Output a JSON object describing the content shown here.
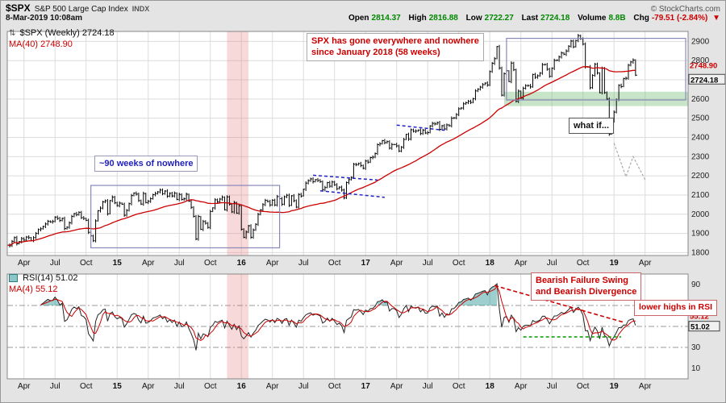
{
  "header": {
    "symbol": "$SPX",
    "name": "S&P 500 Large Cap Index",
    "exchange": "INDX",
    "copyright": "© StockCharts.com",
    "datetime": "8-Mar-2019 10:08am",
    "quote": {
      "open_label": "Open",
      "open": "2814.37",
      "high_label": "High",
      "high": "2816.88",
      "low_label": "Low",
      "low": "2722.27",
      "last_label": "Last",
      "last": "2724.18",
      "volume_label": "Volume",
      "volume": "8.8B",
      "chg_label": "Chg",
      "chg": "-79.51 (-2.84%)",
      "chg_dir": "▼"
    }
  },
  "icons": {
    "series_type": "⇅"
  },
  "legend_main": {
    "series": "$SPX (Weekly) 2724.18",
    "ma": "MA(40) 2748.90"
  },
  "legend_rsi": {
    "series": "RSI(14) 51.02",
    "ma": "MA(4) 55.12"
  },
  "labels": {
    "main_last": "2724.18",
    "main_ma": "2748.90",
    "rsi_last": "51.02",
    "rsi_ma": "55.12"
  },
  "annotations": {
    "spx_note_line1": "SPX has gone everywhere and nowhere",
    "spx_note_line2": "since January 2018 (58 weeks)",
    "ninety_weeks": "~90 weeks of nowhere",
    "what_if": "what if...",
    "bearish_line1": "Bearish Failure Swing",
    "bearish_line2": "and Bearish Divergence",
    "lower_highs": "lower highs in RSI"
  },
  "colors": {
    "up_bar": "#000000",
    "ma_line": "#cc0000",
    "rsi_line": "#222222",
    "rsi_ma": "#cc0000",
    "rsi_fill": "rgba(0,128,128,0.38)",
    "grid": "#dcdcdc",
    "guide": "#999999",
    "band_pink": "rgba(230,120,120,0.28)",
    "band_green": "rgba(120,190,120,0.40)",
    "box_blue": "#8888bb",
    "trend_blue": "#2222cc",
    "trend_red": "#cc0000",
    "trend_green": "#009900",
    "whatif_gray": "#aaaaaa",
    "value_green": "#008800",
    "value_red": "#cc0000"
  },
  "chart_data": {
    "type": "ohlc-bar+line",
    "title": "$SPX S&P 500 Large Cap Index — Weekly with MA(40), RSI(14) with MA(4)",
    "interval": "weekly",
    "x_start": "Feb-2014",
    "x_end": "Mar-2019",
    "last_close": 2724.18,
    "ma40_last": 2748.9,
    "y_axis": {
      "min": 1785,
      "max": 2952,
      "ticks": [
        2900,
        2800,
        2700,
        2600,
        2500,
        2400,
        2300,
        2200,
        2100,
        2000,
        1900,
        1800
      ]
    },
    "x_ticks": [
      {
        "label": "Apr",
        "week": 7
      },
      {
        "label": "Jul",
        "week": 20
      },
      {
        "label": "Oct",
        "week": 33
      },
      {
        "label": "15",
        "week": 46,
        "bold": true
      },
      {
        "label": "Apr",
        "week": 59
      },
      {
        "label": "Jul",
        "week": 72
      },
      {
        "label": "Oct",
        "week": 85
      },
      {
        "label": "16",
        "week": 98,
        "bold": true
      },
      {
        "label": "Apr",
        "week": 111
      },
      {
        "label": "Jul",
        "week": 124
      },
      {
        "label": "Oct",
        "week": 137
      },
      {
        "label": "17",
        "week": 150,
        "bold": true
      },
      {
        "label": "Apr",
        "week": 163
      },
      {
        "label": "Jul",
        "week": 176
      },
      {
        "label": "Oct",
        "week": 189
      },
      {
        "label": "18",
        "week": 202,
        "bold": true
      },
      {
        "label": "Apr",
        "week": 215
      },
      {
        "label": "Jul",
        "week": 228
      },
      {
        "label": "Oct",
        "week": 241
      },
      {
        "label": "19",
        "week": 254,
        "bold": true
      },
      {
        "label": "Apr",
        "week": 267
      }
    ],
    "closes": [
      1839,
      1836,
      1859,
      1878,
      1846,
      1857,
      1873,
      1865,
      1881,
      1878,
      1863,
      1878,
      1900,
      1920,
      1924,
      1936,
      1949,
      1963,
      1960,
      1962,
      1985,
      1978,
      1967,
      1978,
      1925,
      1932,
      1955,
      1988,
      2003,
      1998,
      2010,
      1982,
      1978,
      1968,
      1906,
      1887,
      1862,
      1965,
      2018,
      2032,
      2064,
      2070,
      2002,
      2071,
      2089,
      2059,
      2045,
      2058,
      2052,
      1995,
      2020,
      2055,
      2097,
      2110,
      2105,
      2071,
      2053,
      2108,
      2061,
      2067,
      2081,
      2102,
      2108,
      2116,
      2126,
      2107,
      2121,
      2094,
      2109,
      2095,
      2110,
      2077,
      2103,
      2077,
      2080,
      2104,
      2068,
      2036,
      1989,
      1871,
      1988,
      1921,
      1962,
      1953,
      1931,
      2014,
      2033,
      2075,
      2065,
      2079,
      2089,
      2023,
      2090,
      2052,
      2012,
      2061,
      2006,
      2044,
      1922,
      1880,
      1907,
      1940,
      1880,
      1918,
      1948,
      1999,
      2022,
      2050,
      2072,
      2066,
      2048,
      2073,
      2048,
      2092,
      2081,
      2052,
      2091,
      2099,
      2046,
      2096,
      2071,
      2037,
      2103,
      2095,
      2130,
      2162,
      2175,
      2184,
      2169,
      2180,
      2176,
      2170,
      2128,
      2139,
      2165,
      2146,
      2168,
      2153,
      2133,
      2141,
      2126,
      2085,
      2165,
      2180,
      2192,
      2260,
      2258,
      2264,
      2254,
      2239,
      2277,
      2271,
      2295,
      2297,
      2316,
      2362,
      2367,
      2383,
      2373,
      2378,
      2344,
      2363,
      2363,
      2356,
      2329,
      2349,
      2389,
      2416,
      2391,
      2440,
      2432,
      2433,
      2438,
      2420,
      2438,
      2423,
      2425,
      2460,
      2473,
      2470,
      2477,
      2442,
      2461,
      2444,
      2465,
      2461,
      2500,
      2502,
      2519,
      2549,
      2553,
      2575,
      2581,
      2588,
      2582,
      2602,
      2642,
      2651,
      2662,
      2675,
      2683,
      2673,
      2743,
      2786,
      2810,
      2873,
      2762,
      2620,
      2732,
      2747,
      2691,
      2787,
      2752,
      2588,
      2641,
      2604,
      2656,
      2670,
      2670,
      2663,
      2728,
      2713,
      2721,
      2735,
      2779,
      2780,
      2755,
      2718,
      2760,
      2801,
      2802,
      2819,
      2840,
      2833,
      2850,
      2875,
      2902,
      2872,
      2905,
      2930,
      2914,
      2886,
      2767,
      2768,
      2659,
      2723,
      2781,
      2736,
      2633,
      2760,
      2633,
      2600,
      2417,
      2486,
      2532,
      2596,
      2671,
      2665,
      2707,
      2708,
      2776,
      2793,
      2803,
      2724
    ],
    "ma_period": 40,
    "rsi": {
      "period": 14,
      "ma_period": 4,
      "last": 51.02,
      "ma_last": 55.12,
      "ticks": [
        90,
        70,
        30,
        10
      ],
      "guides": [
        70,
        50,
        30
      ]
    },
    "overlays": {
      "regions": [
        {
          "name": "jan-2016-crash-band",
          "type": "vband",
          "w1": 92,
          "w2": 101,
          "color": "rgba(230,120,120,0.28)",
          "panels": [
            "main",
            "rsi"
          ]
        },
        {
          "name": "consolidation-box-2015",
          "type": "pricebox",
          "w1": 35,
          "w2": 114,
          "p1": 1825,
          "p2": 2150,
          "stroke": "#8888bb"
        },
        {
          "name": "consolidation-box-2018",
          "type": "pricebox",
          "w1": 209,
          "w2": 284,
          "p1": 2595,
          "p2": 2916,
          "stroke": "#8888bb"
        },
        {
          "name": "support-zone-band",
          "type": "hband",
          "w1": 208,
          "w2": 285,
          "p1": 2563,
          "p2": 2638,
          "color": "rgba(120,190,120,0.40)"
        }
      ],
      "trendlines_main": [
        {
          "w1": 128,
          "p1": 2203,
          "w2": 155,
          "p2": 2178,
          "color": "#2222cc",
          "dash": "4,3"
        },
        {
          "w1": 131,
          "p1": 2122,
          "w2": 158,
          "p2": 2088,
          "color": "#2222cc",
          "dash": "4,3"
        },
        {
          "w1": 163,
          "p1": 2464,
          "w2": 184,
          "p2": 2436,
          "color": "#2222cc",
          "dash": "4,3"
        }
      ],
      "whatif_path": [
        [
          254,
          2370
        ],
        [
          259,
          2195
        ],
        [
          262,
          2300
        ],
        [
          267,
          2180
        ]
      ],
      "trendlines_rsi": [
        {
          "w1": 204,
          "v1": 89,
          "w2": 258,
          "v2": 54,
          "color": "#cc0000",
          "dash": "5,3"
        },
        {
          "w1": 216,
          "v1": 40,
          "w2": 257,
          "v2": 40,
          "color": "#009900",
          "dash": "4,3"
        }
      ]
    }
  }
}
